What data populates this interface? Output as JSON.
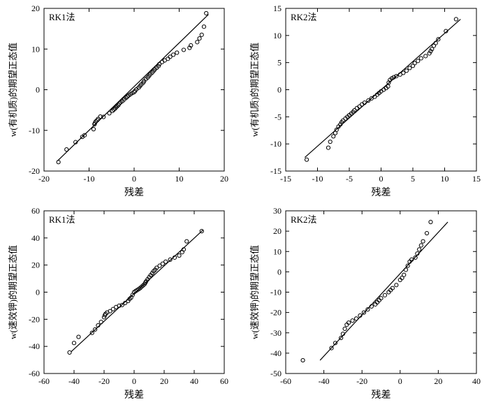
{
  "chart_data": [
    {
      "type": "scatter",
      "title": "RK1法",
      "xlabel": "残差",
      "ylabel": "w(有机质)的期望正态值",
      "xlim": [
        -20,
        20
      ],
      "ylim": [
        -20,
        20
      ],
      "xticks": [
        -20,
        -10,
        0,
        10,
        20
      ],
      "yticks": [
        -20,
        -10,
        0,
        10,
        20
      ],
      "grid": false,
      "marker": "open-circle",
      "points": {
        "x": [
          -16.8,
          -15,
          -13,
          -11.5,
          -11,
          -9,
          -8.8,
          -8.7,
          -8.5,
          -8.2,
          -8,
          -7.5,
          -6.8,
          -5.5,
          -4.8,
          -4.5,
          -4.2,
          -4,
          -3.8,
          -3.5,
          -3.3,
          -3,
          -2.6,
          -2.2,
          -1.8,
          -1.5,
          -1.2,
          -0.8,
          -0.4,
          0,
          0.2,
          0.5,
          1,
          1.3,
          1.6,
          2,
          2.2,
          2.6,
          3,
          3.3,
          3.6,
          4,
          4.3,
          4.6,
          5,
          5.4,
          5.6,
          6.2,
          6.8,
          7.5,
          8,
          8.7,
          9.5,
          11,
          12.3,
          12.6,
          14,
          14.5,
          15,
          15.5,
          16
        ],
        "y": [
          -17.8,
          -14.7,
          -12.9,
          -11.6,
          -11.2,
          -9.7,
          -8.5,
          -8.2,
          -7.8,
          -7.5,
          -7.2,
          -6.6,
          -6.7,
          -5.8,
          -5.2,
          -4.9,
          -4.6,
          -4.3,
          -4.1,
          -3.8,
          -3.4,
          -3.1,
          -2.8,
          -2.4,
          -2,
          -1.7,
          -1.4,
          -1.1,
          -0.8,
          -0.6,
          -0.3,
          0.1,
          0.5,
          0.9,
          1.3,
          1.7,
          2.1,
          2.6,
          3,
          3.4,
          3.8,
          4.2,
          4.6,
          5,
          5.4,
          5.8,
          6.3,
          6.8,
          7.2,
          7.6,
          8.1,
          8.6,
          9.1,
          9.8,
          10.3,
          10.9,
          11.7,
          12.6,
          13.5,
          15.5,
          18.8
        ]
      },
      "fit_line": {
        "x": [
          -17,
          16.5
        ],
        "y": [
          -17.5,
          18.5
        ]
      }
    },
    {
      "type": "scatter",
      "title": "RK2法",
      "xlabel": "残差",
      "ylabel": "w(有机质)的期望正态值",
      "xlim": [
        -15,
        15
      ],
      "ylim": [
        -15,
        15
      ],
      "xticks": [
        -15,
        -10,
        -5,
        0,
        5,
        10,
        15
      ],
      "yticks": [
        -15,
        -10,
        -5,
        0,
        5,
        10,
        15
      ],
      "grid": false,
      "marker": "open-circle",
      "points": {
        "x": [
          -11.7,
          -8.3,
          -8,
          -7.5,
          -7.2,
          -7,
          -6.7,
          -6.4,
          -6.2,
          -6,
          -5.6,
          -5.3,
          -5,
          -4.7,
          -4.4,
          -4.2,
          -3.8,
          -3.4,
          -3,
          -2.6,
          -2,
          -1.5,
          -1,
          -0.6,
          -0.3,
          0,
          0.4,
          0.8,
          1.1,
          1.2,
          1.4,
          1.7,
          2,
          2.4,
          3,
          3.5,
          4,
          4.5,
          5,
          5.3,
          5.8,
          6.3,
          7,
          7.6,
          7.8,
          8,
          8.3,
          8.6,
          9,
          10.2,
          11.8
        ],
        "y": [
          -12.9,
          -10.7,
          -9.6,
          -8.6,
          -8,
          -7.4,
          -6.8,
          -6.4,
          -6,
          -5.7,
          -5.3,
          -5,
          -4.7,
          -4.4,
          -4.1,
          -3.8,
          -3.4,
          -3.1,
          -2.7,
          -2.4,
          -2,
          -1.6,
          -1.3,
          -0.9,
          -0.6,
          -0.3,
          0,
          0.3,
          0.6,
          1.3,
          1.8,
          2.1,
          2.3,
          2.5,
          2.8,
          3.1,
          3.5,
          4,
          4.4,
          4.9,
          5.3,
          5.8,
          6.2,
          6.7,
          7.1,
          7.5,
          8.1,
          8.6,
          9.3,
          10.8,
          13
        ]
      },
      "fit_line": {
        "x": [
          -12,
          12.5
        ],
        "y": [
          -12.5,
          13
        ]
      }
    },
    {
      "type": "scatter",
      "title": "RK1法",
      "xlabel": "残差",
      "ylabel": "w(速效钾)的期望正态值",
      "xlim": [
        -60,
        60
      ],
      "ylim": [
        -60,
        60
      ],
      "xticks": [
        -60,
        -40,
        -20,
        0,
        20,
        40,
        60
      ],
      "yticks": [
        -60,
        -40,
        -20,
        0,
        20,
        40,
        60
      ],
      "grid": false,
      "marker": "open-circle",
      "points": {
        "x": [
          -43,
          -40,
          -37,
          -28,
          -26,
          -24,
          -22,
          -20,
          -19.5,
          -19,
          -18,
          -16,
          -14,
          -12,
          -10,
          -8,
          -6,
          -4,
          -3,
          -2,
          -1,
          0,
          1,
          2,
          3,
          4,
          5,
          6,
          7,
          7.5,
          8,
          9,
          10,
          11,
          12,
          13,
          14,
          15,
          17,
          19,
          21,
          24,
          27,
          30,
          32,
          33,
          35,
          45
        ],
        "y": [
          -44.5,
          -37.5,
          -33,
          -30,
          -27.5,
          -24.5,
          -22,
          -18.5,
          -17,
          -16,
          -15,
          -14,
          -12.5,
          -11,
          -10,
          -9.5,
          -8,
          -6.5,
          -5,
          -4,
          -2,
          0,
          0.8,
          1.5,
          2.2,
          3,
          4,
          5,
          6,
          7,
          8,
          9.5,
          11,
          12.5,
          14,
          15.5,
          16.5,
          18,
          19.5,
          21,
          22.5,
          24,
          25.5,
          27,
          29.5,
          31.5,
          37.5,
          45
        ]
      },
      "fit_line": {
        "x": [
          -42,
          46
        ],
        "y": [
          -44,
          46
        ]
      }
    },
    {
      "type": "scatter",
      "title": "RK2法",
      "xlabel": "残差",
      "ylabel": "w(速效钾)的期望正态值",
      "xlim": [
        -60,
        40
      ],
      "ylim": [
        -50,
        30
      ],
      "xticks": [
        -60,
        -40,
        -20,
        0,
        20,
        40
      ],
      "yticks": [
        -50,
        -40,
        -30,
        -20,
        -10,
        0,
        10,
        20,
        30
      ],
      "grid": false,
      "marker": "open-circle",
      "points": {
        "x": [
          -51,
          -36,
          -34,
          -31,
          -30,
          -29,
          -28,
          -27,
          -25,
          -23,
          -21,
          -19,
          -17,
          -15,
          -13,
          -12,
          -11,
          -10,
          -8,
          -6,
          -5,
          -4,
          -2,
          0,
          1,
          2,
          3,
          4,
          5,
          6,
          8,
          9,
          10,
          11,
          12,
          14,
          16
        ],
        "y": [
          -43.5,
          -37.5,
          -35,
          -32.5,
          -30.5,
          -28,
          -26,
          -25,
          -24,
          -23,
          -21.5,
          -20,
          -18.5,
          -17,
          -16,
          -15,
          -14,
          -13,
          -11.5,
          -10,
          -9,
          -8,
          -6.5,
          -4,
          -3,
          -1.5,
          1,
          3,
          5,
          6,
          7,
          9,
          11,
          13,
          15,
          19,
          24.5
        ]
      },
      "fit_line": {
        "x": [
          -42,
          25
        ],
        "y": [
          -43.5,
          24.5
        ]
      }
    }
  ]
}
